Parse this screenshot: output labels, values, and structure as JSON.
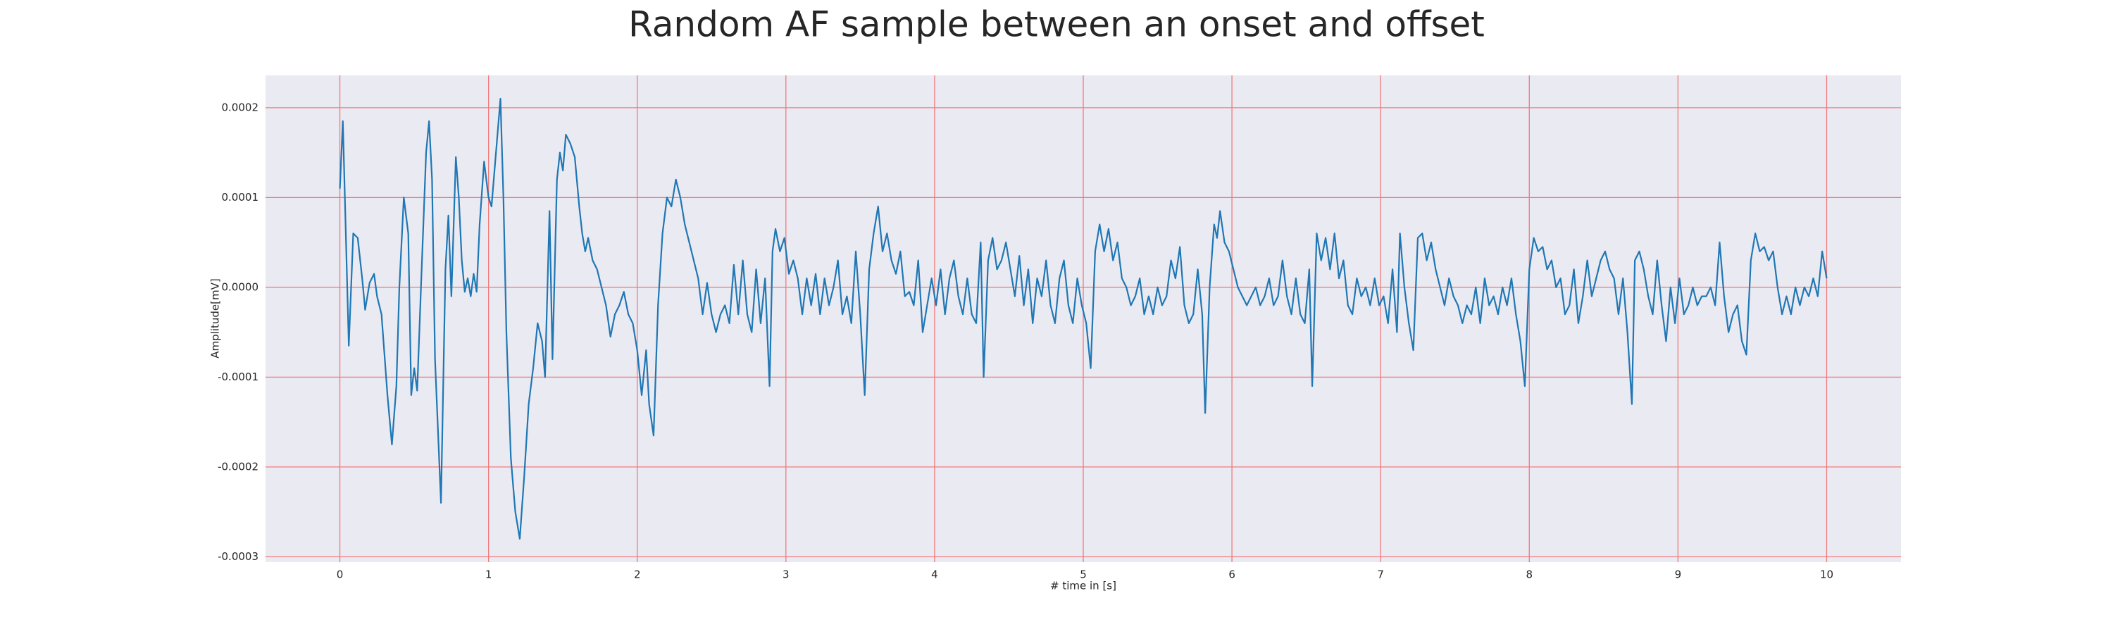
{
  "chart_data": {
    "type": "line",
    "title": "Random AF sample between an onset and offset",
    "xlabel": "# time in [s]",
    "ylabel": "Amplitude[mV]",
    "color": "#1f77b4",
    "background": "#eaeaf2",
    "grid": true,
    "grid_color": "#f07a7a",
    "xlim": [
      -0.5,
      10.5
    ],
    "xticks": [
      0,
      1,
      2,
      3,
      4,
      5,
      6,
      7,
      8,
      9,
      10
    ],
    "ylim": [
      -0.000306,
      0.000236
    ],
    "yticks": [
      -0.0003,
      -0.0002,
      -0.0001,
      {
        "value": 0,
        "label": "0.0000"
      },
      0.0001,
      0.0002
    ],
    "x": [
      0.0,
      0.02,
      0.06,
      0.09,
      0.12,
      0.15,
      0.17,
      0.2,
      0.23,
      0.25,
      0.28,
      0.32,
      0.35,
      0.38,
      0.4,
      0.43,
      0.46,
      0.48,
      0.5,
      0.52,
      0.55,
      0.58,
      0.6,
      0.62,
      0.64,
      0.68,
      0.71,
      0.73,
      0.75,
      0.78,
      0.8,
      0.82,
      0.84,
      0.86,
      0.88,
      0.9,
      0.92,
      0.94,
      0.97,
      1.0,
      1.02,
      1.05,
      1.08,
      1.1,
      1.12,
      1.15,
      1.18,
      1.21,
      1.24,
      1.27,
      1.3,
      1.33,
      1.36,
      1.38,
      1.41,
      1.43,
      1.46,
      1.48,
      1.5,
      1.52,
      1.55,
      1.58,
      1.61,
      1.63,
      1.65,
      1.67,
      1.7,
      1.73,
      1.76,
      1.79,
      1.82,
      1.85,
      1.88,
      1.91,
      1.94,
      1.97,
      2.0,
      2.03,
      2.06,
      2.08,
      2.11,
      2.14,
      2.17,
      2.2,
      2.23,
      2.26,
      2.29,
      2.32,
      2.35,
      2.38,
      2.41,
      2.44,
      2.47,
      2.5,
      2.53,
      2.56,
      2.59,
      2.62,
      2.65,
      2.68,
      2.71,
      2.74,
      2.77,
      2.8,
      2.83,
      2.86,
      2.89,
      2.91,
      2.93,
      2.96,
      2.99,
      3.02,
      3.05,
      3.08,
      3.11,
      3.14,
      3.17,
      3.2,
      3.23,
      3.26,
      3.29,
      3.32,
      3.35,
      3.38,
      3.41,
      3.44,
      3.47,
      3.5,
      3.53,
      3.56,
      3.59,
      3.62,
      3.65,
      3.68,
      3.71,
      3.74,
      3.77,
      3.8,
      3.83,
      3.86,
      3.89,
      3.92,
      3.95,
      3.98,
      4.01,
      4.04,
      4.07,
      4.1,
      4.13,
      4.16,
      4.19,
      4.22,
      4.25,
      4.28,
      4.31,
      4.33,
      4.36,
      4.39,
      4.42,
      4.45,
      4.48,
      4.51,
      4.54,
      4.57,
      4.6,
      4.63,
      4.66,
      4.69,
      4.72,
      4.75,
      4.78,
      4.81,
      4.84,
      4.87,
      4.9,
      4.93,
      4.96,
      4.99,
      5.02,
      5.05,
      5.08,
      5.11,
      5.14,
      5.17,
      5.2,
      5.23,
      5.26,
      5.29,
      5.32,
      5.35,
      5.38,
      5.41,
      5.44,
      5.47,
      5.5,
      5.53,
      5.56,
      5.59,
      5.62,
      5.65,
      5.68,
      5.71,
      5.74,
      5.77,
      5.8,
      5.82,
      5.85,
      5.88,
      5.9,
      5.92,
      5.95,
      5.98,
      6.01,
      6.04,
      6.07,
      6.1,
      6.13,
      6.16,
      6.19,
      6.22,
      6.25,
      6.28,
      6.31,
      6.34,
      6.37,
      6.4,
      6.43,
      6.46,
      6.49,
      6.52,
      6.54,
      6.57,
      6.6,
      6.63,
      6.66,
      6.69,
      6.72,
      6.75,
      6.78,
      6.81,
      6.84,
      6.87,
      6.9,
      6.93,
      6.96,
      6.99,
      7.02,
      7.05,
      7.08,
      7.11,
      7.13,
      7.16,
      7.19,
      7.22,
      7.25,
      7.28,
      7.31,
      7.34,
      7.37,
      7.4,
      7.43,
      7.46,
      7.49,
      7.52,
      7.55,
      7.58,
      7.61,
      7.64,
      7.67,
      7.7,
      7.73,
      7.76,
      7.79,
      7.82,
      7.85,
      7.88,
      7.91,
      7.94,
      7.97,
      8.0,
      8.03,
      8.06,
      8.09,
      8.12,
      8.15,
      8.18,
      8.21,
      8.24,
      8.27,
      8.3,
      8.33,
      8.36,
      8.39,
      8.42,
      8.45,
      8.48,
      8.51,
      8.54,
      8.57,
      8.6,
      8.63,
      8.66,
      8.69,
      8.71,
      8.74,
      8.77,
      8.8,
      8.83,
      8.86,
      8.89,
      8.92,
      8.95,
      8.98,
      9.01,
      9.04,
      9.07,
      9.1,
      9.13,
      9.16,
      9.19,
      9.22,
      9.25,
      9.28,
      9.31,
      9.34,
      9.37,
      9.4,
      9.43,
      9.46,
      9.49,
      9.52,
      9.55,
      9.58,
      9.61,
      9.64,
      9.67,
      9.7,
      9.73,
      9.76,
      9.79,
      9.82,
      9.85,
      9.88,
      9.91,
      9.94,
      9.97,
      10.0
    ],
    "values": [
      0.00011,
      0.000185,
      -6.5e-05,
      6e-05,
      5.5e-05,
      1e-05,
      -2.5e-05,
      5e-06,
      1.5e-05,
      -1e-05,
      -3e-05,
      -0.00012,
      -0.000175,
      -0.00011,
      0,
      0.0001,
      6e-05,
      -0.00012,
      -9e-05,
      -0.000115,
      2e-05,
      0.00015,
      0.000185,
      0.00012,
      -8e-05,
      -0.00024,
      2e-05,
      8e-05,
      -1e-05,
      0.000145,
      0.0001,
      3e-05,
      -5e-06,
      1e-05,
      -1e-05,
      1.5e-05,
      -5e-06,
      7e-05,
      0.00014,
      0.0001,
      9e-05,
      0.00015,
      0.00021,
      0.0001,
      -5e-05,
      -0.00019,
      -0.00025,
      -0.00028,
      -0.00021,
      -0.00013,
      -9e-05,
      -4e-05,
      -6e-05,
      -0.0001,
      8.5e-05,
      -8e-05,
      0.00012,
      0.00015,
      0.00013,
      0.00017,
      0.00016,
      0.000145,
      9e-05,
      6e-05,
      4e-05,
      5.5e-05,
      3e-05,
      2e-05,
      0,
      -2e-05,
      -5.5e-05,
      -3e-05,
      -2e-05,
      -5e-06,
      -3e-05,
      -4e-05,
      -7e-05,
      -0.00012,
      -7e-05,
      -0.00013,
      -0.000165,
      -2e-05,
      6e-05,
      0.0001,
      9e-05,
      0.00012,
      0.0001,
      7e-05,
      5e-05,
      3e-05,
      1e-05,
      -3e-05,
      5e-06,
      -3e-05,
      -5e-05,
      -3e-05,
      -2e-05,
      -4e-05,
      2.5e-05,
      -3e-05,
      3e-05,
      -3e-05,
      -5e-05,
      2e-05,
      -4e-05,
      1e-05,
      -0.00011,
      4e-05,
      6.5e-05,
      4e-05,
      5.5e-05,
      1.5e-05,
      3e-05,
      1e-05,
      -3e-05,
      1e-05,
      -2e-05,
      1.5e-05,
      -3e-05,
      1e-05,
      -2e-05,
      0,
      3e-05,
      -3e-05,
      -1e-05,
      -4e-05,
      4e-05,
      -3e-05,
      -0.00012,
      2e-05,
      6e-05,
      9e-05,
      4e-05,
      6e-05,
      3e-05,
      1.5e-05,
      4e-05,
      -1e-05,
      -5e-06,
      -2e-05,
      3e-05,
      -5e-05,
      -2e-05,
      1e-05,
      -2e-05,
      2e-05,
      -3e-05,
      1e-05,
      3e-05,
      -1e-05,
      -3e-05,
      1e-05,
      -3e-05,
      -4e-05,
      5e-05,
      -0.0001,
      3e-05,
      5.5e-05,
      2e-05,
      3e-05,
      5e-05,
      2e-05,
      -1e-05,
      3.5e-05,
      -2e-05,
      2e-05,
      -4e-05,
      1e-05,
      -1e-05,
      3e-05,
      -2e-05,
      -4e-05,
      1e-05,
      3e-05,
      -2e-05,
      -4e-05,
      1e-05,
      -2e-05,
      -4e-05,
      -9e-05,
      4e-05,
      7e-05,
      4e-05,
      6.5e-05,
      3e-05,
      5e-05,
      1e-05,
      0,
      -2e-05,
      -1e-05,
      1e-05,
      -3e-05,
      -1e-05,
      -3e-05,
      0,
      -2e-05,
      -1e-05,
      3e-05,
      1e-05,
      4.5e-05,
      -2e-05,
      -4e-05,
      -3e-05,
      2e-05,
      -3e-05,
      -0.00014,
      0,
      7e-05,
      5.5e-05,
      8.5e-05,
      5e-05,
      4e-05,
      2e-05,
      0,
      -1e-05,
      -2e-05,
      -1e-05,
      0,
      -2e-05,
      -1e-05,
      1e-05,
      -2e-05,
      -1e-05,
      3e-05,
      -1e-05,
      -3e-05,
      1e-05,
      -3e-05,
      -4e-05,
      2e-05,
      -0.00011,
      6e-05,
      3e-05,
      5.5e-05,
      2e-05,
      6e-05,
      1e-05,
      3e-05,
      -2e-05,
      -3e-05,
      1e-05,
      -1e-05,
      0,
      -2e-05,
      1e-05,
      -2e-05,
      -1e-05,
      -4e-05,
      2e-05,
      -5e-05,
      6e-05,
      0,
      -4e-05,
      -7e-05,
      5.5e-05,
      6e-05,
      3e-05,
      5e-05,
      2e-05,
      0,
      -2e-05,
      1e-05,
      -1e-05,
      -2e-05,
      -4e-05,
      -2e-05,
      -3e-05,
      0,
      -4e-05,
      1e-05,
      -2e-05,
      -1e-05,
      -3e-05,
      0,
      -2e-05,
      1e-05,
      -3e-05,
      -6e-05,
      -0.00011,
      2e-05,
      5.5e-05,
      4e-05,
      4.5e-05,
      2e-05,
      3e-05,
      0,
      1e-05,
      -3e-05,
      -2e-05,
      2e-05,
      -4e-05,
      -1e-05,
      3e-05,
      -1e-05,
      1e-05,
      3e-05,
      4e-05,
      2e-05,
      1e-05,
      -3e-05,
      1e-05,
      -5e-05,
      -0.00013,
      3e-05,
      4e-05,
      2e-05,
      -1e-05,
      -3e-05,
      3e-05,
      -2e-05,
      -6e-05,
      0,
      -4e-05,
      1e-05,
      -3e-05,
      -2e-05,
      0,
      -2e-05,
      -1e-05,
      -1e-05,
      0,
      -2e-05,
      5e-05,
      -1e-05,
      -5e-05,
      -3e-05,
      -2e-05,
      -6e-05,
      -7.5e-05,
      3e-05,
      6e-05,
      4e-05,
      4.5e-05,
      3e-05,
      4e-05,
      0,
      -3e-05,
      -1e-05,
      -3e-05,
      0,
      -2e-05,
      0,
      -1e-05,
      1e-05,
      -1e-05,
      4e-05,
      1e-05
    ]
  }
}
